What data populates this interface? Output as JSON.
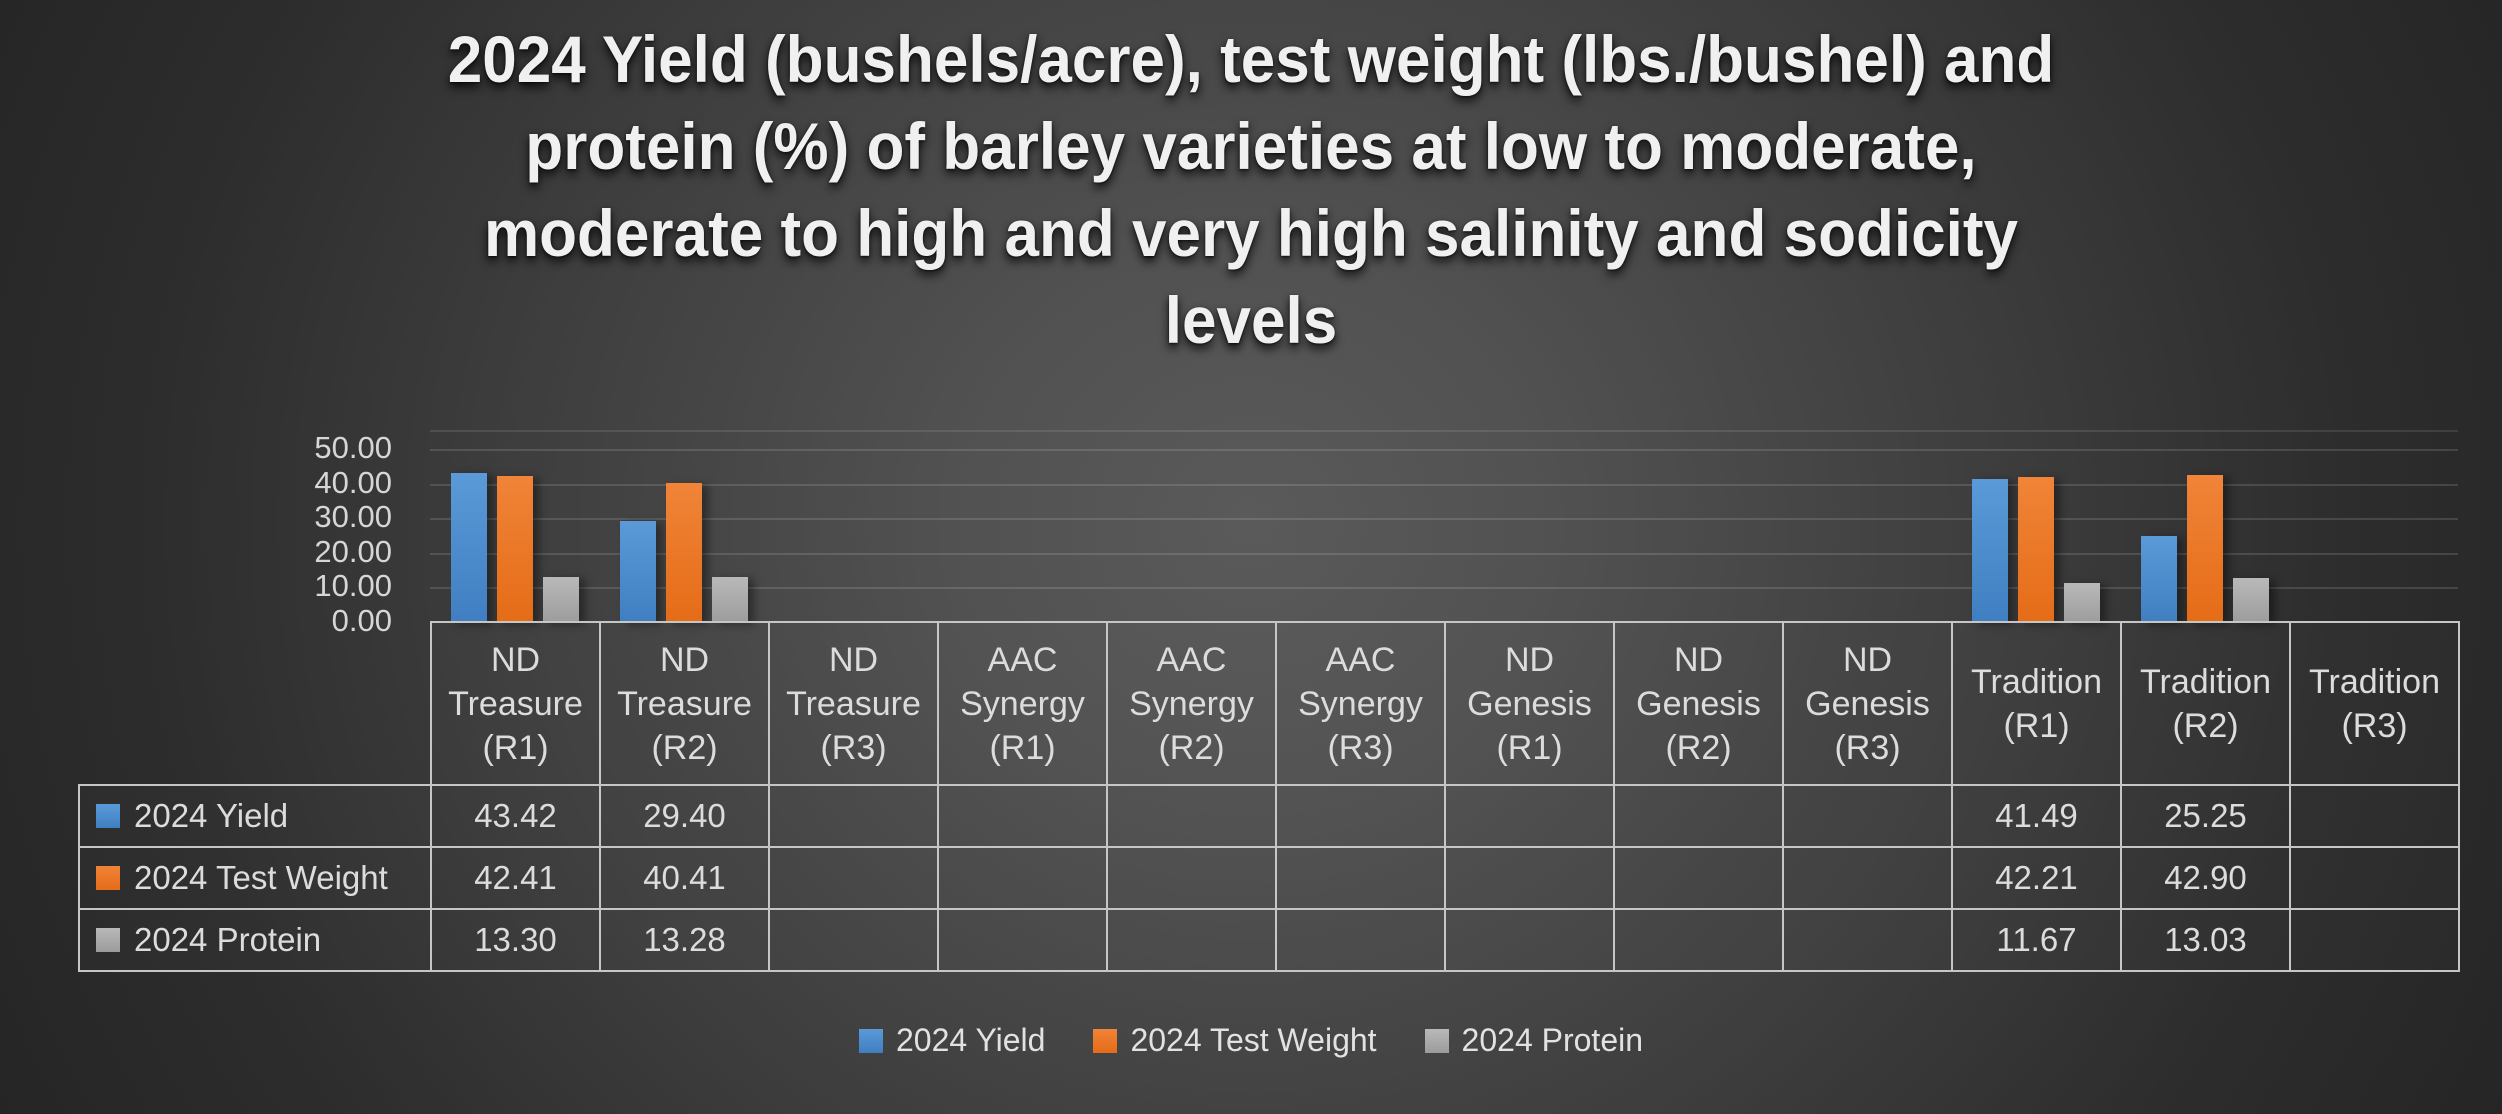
{
  "title_lines": [
    "2024 Yield (bushels/acre), test weight (lbs./bushel) and",
    "protein (%) of barley varieties at low to moderate,",
    "moderate to high and very high salinity and sodicity",
    "levels"
  ],
  "chart_data": {
    "type": "bar",
    "title": "2024 Yield (bushels/acre), test weight (lbs./bushel) and protein (%) of barley varieties at low to moderate, moderate to high and very high salinity and sodicity levels",
    "categories": [
      "ND Treasure (R1)",
      "ND Treasure (R2)",
      "ND Treasure (R3)",
      "AAC Synergy (R1)",
      "AAC Synergy (R2)",
      "AAC Synergy (R3)",
      "ND Genesis (R1)",
      "ND Genesis (R2)",
      "ND Genesis (R3)",
      "Tradition (R1)",
      "Tradition (R2)",
      "Tradition (R3)"
    ],
    "series": [
      {
        "name": "2024 Yield",
        "color": "#5b9ad8",
        "color2": "#3f7fc1",
        "values": [
          43.42,
          29.4,
          null,
          null,
          null,
          null,
          null,
          null,
          null,
          41.49,
          25.25,
          null
        ],
        "labels": [
          "43.42",
          "29.40",
          "",
          "",
          "",
          "",
          "",
          "",
          "",
          "41.49",
          "25.25",
          ""
        ]
      },
      {
        "name": "2024 Test Weight",
        "color": "#f08438",
        "color2": "#e56c17",
        "values": [
          42.41,
          40.41,
          null,
          null,
          null,
          null,
          null,
          null,
          null,
          42.21,
          42.9,
          null
        ],
        "labels": [
          "42.41",
          "40.41",
          "",
          "",
          "",
          "",
          "",
          "",
          "",
          "42.21",
          "42.90",
          ""
        ]
      },
      {
        "name": "2024 Protein",
        "color": "#b9b9b9",
        "color2": "#9c9c9c",
        "values": [
          13.3,
          13.28,
          null,
          null,
          null,
          null,
          null,
          null,
          null,
          11.67,
          13.03,
          null
        ],
        "labels": [
          "13.30",
          "13.28",
          "",
          "",
          "",
          "",
          "",
          "",
          "",
          "11.67",
          "13.03",
          ""
        ]
      }
    ],
    "ylim": [
      0,
      50
    ],
    "ytick_step": 10,
    "yticks": [
      {
        "value": 50,
        "label": "50.00"
      },
      {
        "value": 40,
        "label": "40.00"
      },
      {
        "value": 30,
        "label": "30.00"
      },
      {
        "value": 20,
        "label": "20.00"
      },
      {
        "value": 10,
        "label": "10.00"
      },
      {
        "value": 0,
        "label": "0.00"
      }
    ],
    "grid": true,
    "legend_position": "bottom",
    "show_data_table": true
  },
  "colors": {
    "gridline": "rgba(255,255,255,0.13)",
    "table_border": "#c6c6c6",
    "tick_text": "#d6d6d6",
    "title_text": "#f0f0f0"
  }
}
